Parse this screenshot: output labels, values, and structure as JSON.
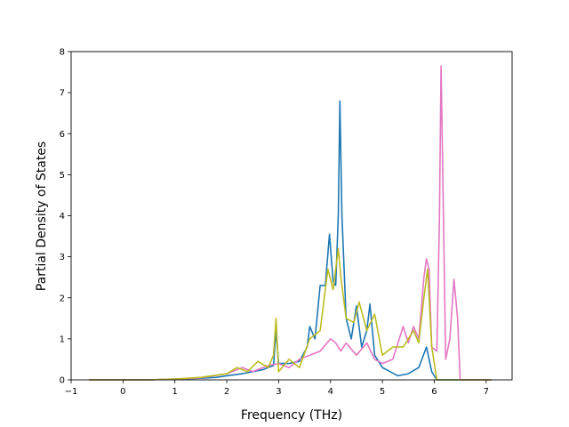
{
  "chart_data": {
    "type": "line",
    "xlabel": "Frequency (THz)",
    "ylabel": "Partial Density of States",
    "xlim": [
      -1.0,
      7.5
    ],
    "ylim": [
      0,
      8
    ],
    "x_ticks": [
      "−1",
      "0",
      "1",
      "2",
      "3",
      "4",
      "5",
      "6",
      "7"
    ],
    "y_ticks": [
      "0",
      "1",
      "2",
      "3",
      "4",
      "5",
      "6",
      "7",
      "8"
    ],
    "grid": false,
    "legend": "none",
    "series": [
      {
        "color": "#1f77b4",
        "points": [
          [
            -0.65,
            0
          ],
          [
            0,
            0
          ],
          [
            0.5,
            0
          ],
          [
            1.0,
            0.02
          ],
          [
            1.5,
            0.04
          ],
          [
            1.8,
            0.06
          ],
          [
            2.0,
            0.1
          ],
          [
            2.3,
            0.15
          ],
          [
            2.5,
            0.2
          ],
          [
            2.7,
            0.25
          ],
          [
            2.9,
            0.35
          ],
          [
            2.95,
            1.2
          ],
          [
            3.0,
            0.4
          ],
          [
            3.2,
            0.4
          ],
          [
            3.4,
            0.45
          ],
          [
            3.55,
            0.8
          ],
          [
            3.6,
            1.3
          ],
          [
            3.7,
            1.0
          ],
          [
            3.8,
            2.3
          ],
          [
            3.9,
            2.3
          ],
          [
            3.98,
            3.55
          ],
          [
            4.05,
            2.4
          ],
          [
            4.1,
            2.3
          ],
          [
            4.15,
            4.0
          ],
          [
            4.18,
            6.8
          ],
          [
            4.22,
            4.0
          ],
          [
            4.3,
            1.5
          ],
          [
            4.4,
            1.0
          ],
          [
            4.5,
            1.8
          ],
          [
            4.6,
            0.8
          ],
          [
            4.7,
            1.2
          ],
          [
            4.76,
            1.85
          ],
          [
            4.85,
            0.6
          ],
          [
            5.0,
            0.3
          ],
          [
            5.3,
            0.1
          ],
          [
            5.5,
            0.15
          ],
          [
            5.7,
            0.3
          ],
          [
            5.85,
            0.8
          ],
          [
            5.95,
            0.2
          ],
          [
            6.05,
            0
          ],
          [
            6.5,
            0
          ],
          [
            7.1,
            0
          ]
        ]
      },
      {
        "color": "#e377c2",
        "points": [
          [
            -0.65,
            0
          ],
          [
            0,
            0
          ],
          [
            0.5,
            0
          ],
          [
            1.0,
            0.02
          ],
          [
            1.5,
            0.05
          ],
          [
            2.0,
            0.15
          ],
          [
            2.3,
            0.3
          ],
          [
            2.5,
            0.2
          ],
          [
            2.8,
            0.35
          ],
          [
            3.0,
            0.4
          ],
          [
            3.2,
            0.3
          ],
          [
            3.4,
            0.5
          ],
          [
            3.6,
            0.6
          ],
          [
            3.8,
            0.7
          ],
          [
            4.0,
            1.0
          ],
          [
            4.1,
            0.9
          ],
          [
            4.2,
            0.7
          ],
          [
            4.3,
            0.9
          ],
          [
            4.5,
            0.6
          ],
          [
            4.7,
            0.9
          ],
          [
            4.85,
            0.5
          ],
          [
            5.0,
            0.4
          ],
          [
            5.2,
            0.5
          ],
          [
            5.4,
            1.3
          ],
          [
            5.5,
            0.9
          ],
          [
            5.6,
            1.3
          ],
          [
            5.7,
            1.0
          ],
          [
            5.8,
            2.5
          ],
          [
            5.85,
            2.95
          ],
          [
            5.9,
            2.7
          ],
          [
            5.95,
            0.8
          ],
          [
            6.05,
            0.7
          ],
          [
            6.1,
            4.0
          ],
          [
            6.13,
            7.65
          ],
          [
            6.17,
            4.5
          ],
          [
            6.22,
            0.5
          ],
          [
            6.3,
            1.0
          ],
          [
            6.38,
            2.45
          ],
          [
            6.45,
            1.5
          ],
          [
            6.5,
            0
          ],
          [
            7.1,
            0
          ]
        ]
      },
      {
        "color": "#bcbd22",
        "points": [
          [
            -0.65,
            0
          ],
          [
            0,
            0
          ],
          [
            0.5,
            0
          ],
          [
            1.0,
            0.02
          ],
          [
            1.5,
            0.06
          ],
          [
            2.0,
            0.15
          ],
          [
            2.2,
            0.3
          ],
          [
            2.4,
            0.2
          ],
          [
            2.6,
            0.45
          ],
          [
            2.8,
            0.3
          ],
          [
            2.9,
            0.6
          ],
          [
            2.95,
            1.5
          ],
          [
            3.0,
            0.2
          ],
          [
            3.2,
            0.5
          ],
          [
            3.4,
            0.3
          ],
          [
            3.6,
            1.0
          ],
          [
            3.8,
            1.2
          ],
          [
            3.95,
            2.7
          ],
          [
            4.05,
            2.2
          ],
          [
            4.15,
            3.2
          ],
          [
            4.2,
            2.5
          ],
          [
            4.3,
            1.5
          ],
          [
            4.45,
            1.4
          ],
          [
            4.55,
            1.9
          ],
          [
            4.7,
            1.2
          ],
          [
            4.85,
            1.6
          ],
          [
            5.0,
            0.6
          ],
          [
            5.2,
            0.8
          ],
          [
            5.4,
            0.8
          ],
          [
            5.6,
            1.2
          ],
          [
            5.7,
            0.9
          ],
          [
            5.8,
            2.0
          ],
          [
            5.87,
            2.7
          ],
          [
            5.95,
            0.8
          ],
          [
            6.05,
            0
          ],
          [
            7.1,
            0
          ]
        ]
      }
    ]
  }
}
